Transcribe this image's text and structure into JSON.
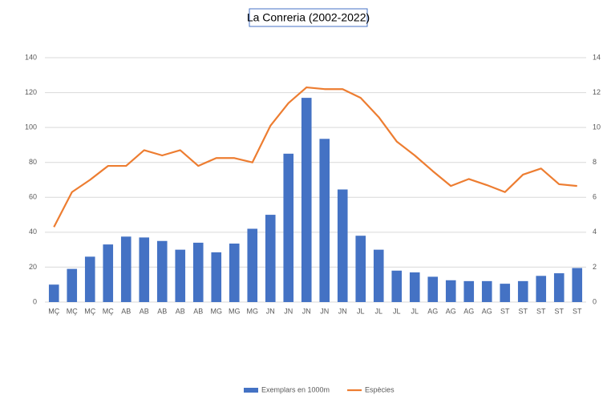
{
  "chart_data": {
    "type": "bar_line",
    "title": "La Conreria (2002-2022)",
    "categories": [
      "MÇ",
      "MÇ",
      "MÇ",
      "MÇ",
      "AB",
      "AB",
      "AB",
      "AB",
      "AB",
      "MG",
      "MG",
      "MG",
      "JN",
      "JN",
      "JN",
      "JN",
      "JN",
      "JL",
      "JL",
      "JL",
      "JL",
      "AG",
      "AG",
      "AG",
      "AG",
      "ST",
      "ST",
      "ST",
      "ST",
      "ST"
    ],
    "series": [
      {
        "name": "Exemplars en 1000m",
        "type": "bar",
        "color": "#4472c4",
        "values": [
          10,
          19,
          26,
          33,
          37.5,
          37,
          35,
          30,
          34,
          28.5,
          33.5,
          42,
          50,
          85,
          117,
          93.5,
          64.5,
          38,
          30,
          18,
          17,
          14.5,
          12.5,
          12,
          12,
          10.5,
          12,
          15,
          16.5,
          19.5
        ]
      },
      {
        "name": "Espècies",
        "type": "line",
        "axis": "y2",
        "color": "#ed7d31",
        "values": [
          4.3,
          6.3,
          7.0,
          7.8,
          7.8,
          8.7,
          8.4,
          8.7,
          7.8,
          8.25,
          8.25,
          8.0,
          10.1,
          11.4,
          12.3,
          12.2,
          12.2,
          11.7,
          10.6,
          9.2,
          8.4,
          7.5,
          6.65,
          7.05,
          6.7,
          6.3,
          7.3,
          7.65,
          6.75,
          6.65
        ]
      }
    ],
    "ylim": [
      0,
      140
    ],
    "yticks": [
      0,
      20,
      40,
      60,
      80,
      100,
      120,
      140
    ],
    "y2lim": [
      0,
      14
    ],
    "y2ticks": [
      0,
      2,
      4,
      6,
      8,
      10,
      12,
      14
    ],
    "grid": true,
    "legend": "bottom"
  }
}
